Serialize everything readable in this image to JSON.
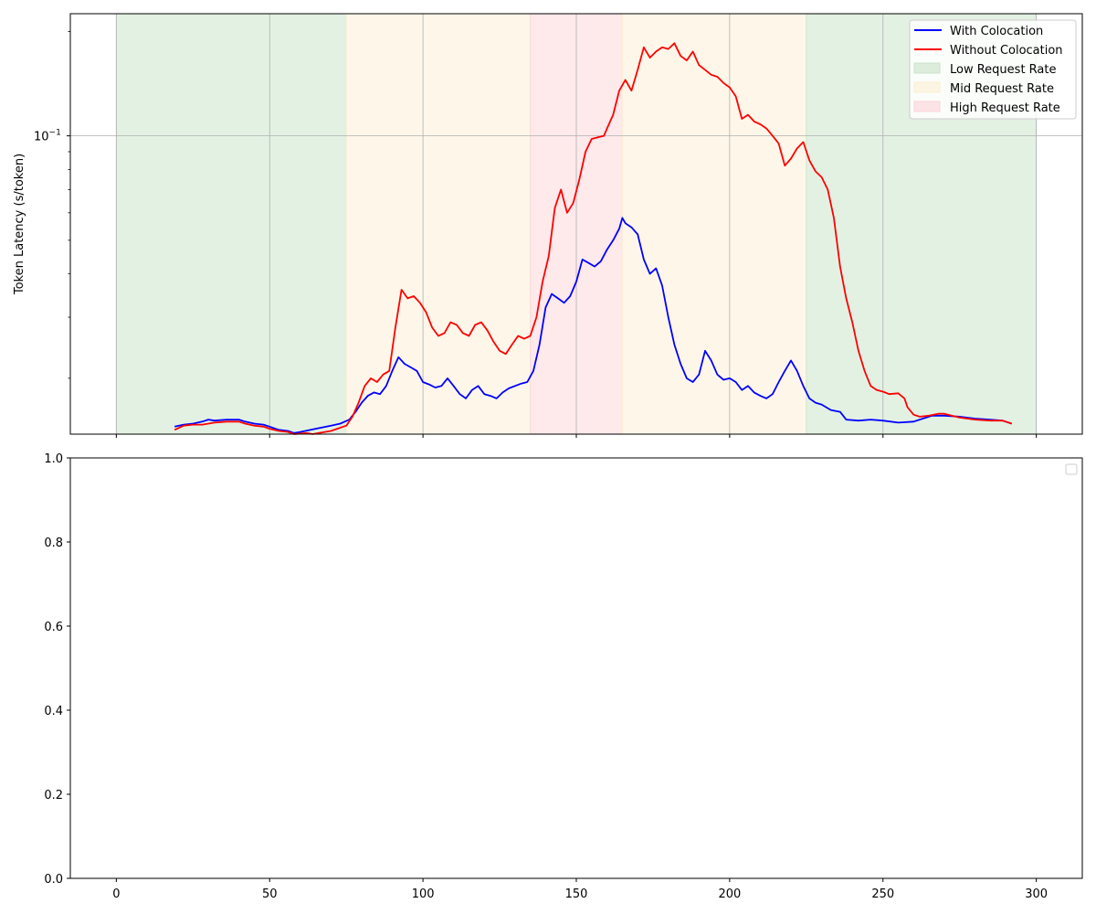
{
  "chart_data": [
    {
      "type": "line",
      "title": "",
      "xlabel": "",
      "ylabel": "Token Latency (s/token)",
      "yscale": "log",
      "xlim": [
        -15,
        315
      ],
      "ylim": [
        0.0138,
        0.225
      ],
      "x_ticks": [
        0,
        50,
        100,
        150,
        200,
        250,
        300
      ],
      "x_ticks_labels_visible": false,
      "y_major_ticks": [
        {
          "value": 0.1,
          "label": "10^{-1}"
        }
      ],
      "grid": true,
      "legend": {
        "position": "upper right",
        "entries": [
          "With Colocation",
          "Without Colocation",
          "Low Request Rate",
          "Mid Request Rate",
          "High Request Rate"
        ]
      },
      "regions": [
        {
          "name": "Low Request Rate",
          "x0": 0,
          "x1": 75,
          "color": "#c8e3c8"
        },
        {
          "name": "Mid Request Rate",
          "x0": 75,
          "x1": 135,
          "color": "#fdf0d3"
        },
        {
          "name": "High Request Rate",
          "x0": 135,
          "x1": 165,
          "color": "#fdd3d8"
        },
        {
          "name": "Mid Request Rate",
          "x0": 165,
          "x1": 225,
          "color": "#fdf0d3"
        },
        {
          "name": "Low Request Rate",
          "x0": 225,
          "x1": 300,
          "color": "#c8e3c8"
        }
      ],
      "series": [
        {
          "name": "With Colocation",
          "color": "#0000ff",
          "points": [
            [
              19,
              0.0145
            ],
            [
              22,
              0.0147
            ],
            [
              25,
              0.0148
            ],
            [
              28,
              0.015
            ],
            [
              30,
              0.0152
            ],
            [
              32,
              0.0151
            ],
            [
              36,
              0.0152
            ],
            [
              40,
              0.0152
            ],
            [
              42,
              0.015
            ],
            [
              45,
              0.0148
            ],
            [
              48,
              0.0147
            ],
            [
              50,
              0.0145
            ],
            [
              53,
              0.0142
            ],
            [
              56,
              0.0141
            ],
            [
              58,
              0.0139
            ],
            [
              60,
              0.014
            ],
            [
              65,
              0.0143
            ],
            [
              70,
              0.0146
            ],
            [
              73,
              0.0148
            ],
            [
              76,
              0.0152
            ],
            [
              78,
              0.016
            ],
            [
              80,
              0.017
            ],
            [
              82,
              0.0178
            ],
            [
              84,
              0.0182
            ],
            [
              86,
              0.018
            ],
            [
              88,
              0.019
            ],
            [
              90,
              0.021
            ],
            [
              92,
              0.023
            ],
            [
              94,
              0.022
            ],
            [
              96,
              0.0215
            ],
            [
              98,
              0.021
            ],
            [
              100,
              0.0195
            ],
            [
              102,
              0.0192
            ],
            [
              104,
              0.0188
            ],
            [
              106,
              0.019
            ],
            [
              108,
              0.02
            ],
            [
              110,
              0.019
            ],
            [
              112,
              0.018
            ],
            [
              114,
              0.0175
            ],
            [
              116,
              0.0185
            ],
            [
              118,
              0.019
            ],
            [
              120,
              0.018
            ],
            [
              122,
              0.0178
            ],
            [
              124,
              0.0175
            ],
            [
              126,
              0.0182
            ],
            [
              128,
              0.0187
            ],
            [
              130,
              0.019
            ],
            [
              132,
              0.0193
            ],
            [
              134,
              0.0195
            ],
            [
              136,
              0.021
            ],
            [
              138,
              0.025
            ],
            [
              140,
              0.032
            ],
            [
              142,
              0.035
            ],
            [
              144,
              0.034
            ],
            [
              146,
              0.033
            ],
            [
              148,
              0.0345
            ],
            [
              150,
              0.038
            ],
            [
              152,
              0.044
            ],
            [
              154,
              0.043
            ],
            [
              156,
              0.042
            ],
            [
              158,
              0.0435
            ],
            [
              160,
              0.047
            ],
            [
              162,
              0.05
            ],
            [
              164,
              0.054
            ],
            [
              165,
              0.058
            ],
            [
              166,
              0.056
            ],
            [
              168,
              0.0545
            ],
            [
              170,
              0.052
            ],
            [
              172,
              0.044
            ],
            [
              174,
              0.04
            ],
            [
              176,
              0.0415
            ],
            [
              178,
              0.037
            ],
            [
              180,
              0.03
            ],
            [
              182,
              0.025
            ],
            [
              184,
              0.022
            ],
            [
              186,
              0.02
            ],
            [
              188,
              0.0195
            ],
            [
              190,
              0.0205
            ],
            [
              192,
              0.024
            ],
            [
              194,
              0.0225
            ],
            [
              196,
              0.0205
            ],
            [
              198,
              0.0198
            ],
            [
              200,
              0.02
            ],
            [
              202,
              0.0195
            ],
            [
              204,
              0.0185
            ],
            [
              206,
              0.019
            ],
            [
              208,
              0.0182
            ],
            [
              210,
              0.0178
            ],
            [
              212,
              0.0175
            ],
            [
              214,
              0.018
            ],
            [
              216,
              0.0195
            ],
            [
              218,
              0.021
            ],
            [
              220,
              0.0225
            ],
            [
              222,
              0.021
            ],
            [
              224,
              0.019
            ],
            [
              226,
              0.0175
            ],
            [
              228,
              0.017
            ],
            [
              230,
              0.0168
            ],
            [
              233,
              0.0162
            ],
            [
              236,
              0.016
            ],
            [
              238,
              0.0152
            ],
            [
              242,
              0.0151
            ],
            [
              246,
              0.0152
            ],
            [
              250,
              0.0151
            ],
            [
              255,
              0.0149
            ],
            [
              260,
              0.015
            ],
            [
              263,
              0.0153
            ],
            [
              266,
              0.0156
            ],
            [
              270,
              0.0156
            ],
            [
              275,
              0.0155
            ],
            [
              280,
              0.0153
            ],
            [
              285,
              0.0152
            ],
            [
              289,
              0.0151
            ],
            [
              292,
              0.0148
            ]
          ]
        },
        {
          "name": "Without Colocation",
          "color": "#ff0000",
          "points": [
            [
              19,
              0.0142
            ],
            [
              22,
              0.0146
            ],
            [
              25,
              0.0147
            ],
            [
              28,
              0.0147
            ],
            [
              30,
              0.0148
            ],
            [
              32,
              0.0149
            ],
            [
              36,
              0.015
            ],
            [
              40,
              0.015
            ],
            [
              42,
              0.0148
            ],
            [
              45,
              0.0146
            ],
            [
              48,
              0.0145
            ],
            [
              50,
              0.0143
            ],
            [
              53,
              0.0141
            ],
            [
              56,
              0.014
            ],
            [
              58,
              0.0138
            ],
            [
              62,
              0.0139
            ],
            [
              64,
              0.0138
            ],
            [
              66,
              0.0139
            ],
            [
              70,
              0.0141
            ],
            [
              73,
              0.0144
            ],
            [
              75,
              0.0146
            ],
            [
              77,
              0.0155
            ],
            [
              79,
              0.017
            ],
            [
              81,
              0.019
            ],
            [
              83,
              0.02
            ],
            [
              85,
              0.0195
            ],
            [
              87,
              0.0205
            ],
            [
              89,
              0.021
            ],
            [
              91,
              0.028
            ],
            [
              93,
              0.036
            ],
            [
              95,
              0.034
            ],
            [
              97,
              0.0345
            ],
            [
              99,
              0.033
            ],
            [
              101,
              0.031
            ],
            [
              103,
              0.028
            ],
            [
              105,
              0.0265
            ],
            [
              107,
              0.027
            ],
            [
              109,
              0.029
            ],
            [
              111,
              0.0285
            ],
            [
              113,
              0.027
            ],
            [
              115,
              0.0265
            ],
            [
              117,
              0.0285
            ],
            [
              119,
              0.029
            ],
            [
              121,
              0.0275
            ],
            [
              123,
              0.0255
            ],
            [
              125,
              0.024
            ],
            [
              127,
              0.0235
            ],
            [
              129,
              0.025
            ],
            [
              131,
              0.0265
            ],
            [
              133,
              0.026
            ],
            [
              135,
              0.0265
            ],
            [
              137,
              0.03
            ],
            [
              139,
              0.038
            ],
            [
              141,
              0.045
            ],
            [
              143,
              0.062
            ],
            [
              145,
              0.07
            ],
            [
              147,
              0.06
            ],
            [
              149,
              0.064
            ],
            [
              151,
              0.075
            ],
            [
              153,
              0.09
            ],
            [
              155,
              0.098
            ],
            [
              157,
              0.099
            ],
            [
              159,
              0.1
            ],
            [
              160,
              0.105
            ],
            [
              162,
              0.115
            ],
            [
              164,
              0.135
            ],
            [
              166,
              0.145
            ],
            [
              168,
              0.135
            ],
            [
              170,
              0.155
            ],
            [
              172,
              0.18
            ],
            [
              174,
              0.168
            ],
            [
              176,
              0.175
            ],
            [
              178,
              0.18
            ],
            [
              180,
              0.178
            ],
            [
              182,
              0.185
            ],
            [
              184,
              0.17
            ],
            [
              186,
              0.165
            ],
            [
              188,
              0.175
            ],
            [
              190,
              0.16
            ],
            [
              192,
              0.155
            ],
            [
              194,
              0.15
            ],
            [
              196,
              0.148
            ],
            [
              198,
              0.142
            ],
            [
              200,
              0.138
            ],
            [
              202,
              0.13
            ],
            [
              204,
              0.112
            ],
            [
              206,
              0.115
            ],
            [
              208,
              0.11
            ],
            [
              210,
              0.108
            ],
            [
              212,
              0.105
            ],
            [
              214,
              0.1
            ],
            [
              216,
              0.095
            ],
            [
              218,
              0.082
            ],
            [
              220,
              0.086
            ],
            [
              222,
              0.092
            ],
            [
              224,
              0.096
            ],
            [
              226,
              0.085
            ],
            [
              228,
              0.079
            ],
            [
              230,
              0.076
            ],
            [
              232,
              0.07
            ],
            [
              234,
              0.058
            ],
            [
              236,
              0.042
            ],
            [
              238,
              0.034
            ],
            [
              240,
              0.029
            ],
            [
              242,
              0.024
            ],
            [
              244,
              0.021
            ],
            [
              246,
              0.019
            ],
            [
              248,
              0.0185
            ],
            [
              250,
              0.0183
            ],
            [
              252,
              0.018
            ],
            [
              255,
              0.0181
            ],
            [
              257,
              0.0175
            ],
            [
              258,
              0.0165
            ],
            [
              260,
              0.0157
            ],
            [
              262,
              0.0155
            ],
            [
              265,
              0.0156
            ],
            [
              268,
              0.0158
            ],
            [
              270,
              0.0158
            ],
            [
              275,
              0.0154
            ],
            [
              280,
              0.0152
            ],
            [
              285,
              0.0151
            ],
            [
              289,
              0.0151
            ],
            [
              292,
              0.0148
            ]
          ]
        }
      ]
    },
    {
      "type": "line",
      "title": "",
      "xlabel": "",
      "ylabel": "",
      "xlim": [
        -15,
        315
      ],
      "ylim": [
        0.0,
        1.0
      ],
      "x_ticks": [
        0,
        50,
        100,
        150,
        200,
        250,
        300
      ],
      "x_tick_labels": [
        "0",
        "50",
        "100",
        "150",
        "200",
        "250",
        "300"
      ],
      "y_ticks": [
        0.0,
        0.2,
        0.4,
        0.6,
        0.8,
        1.0
      ],
      "y_tick_labels": [
        "0.0",
        "0.2",
        "0.4",
        "0.6",
        "0.8",
        "1.0"
      ],
      "grid": false,
      "legend": {
        "position": "upper right",
        "entries": []
      },
      "series": []
    }
  ]
}
